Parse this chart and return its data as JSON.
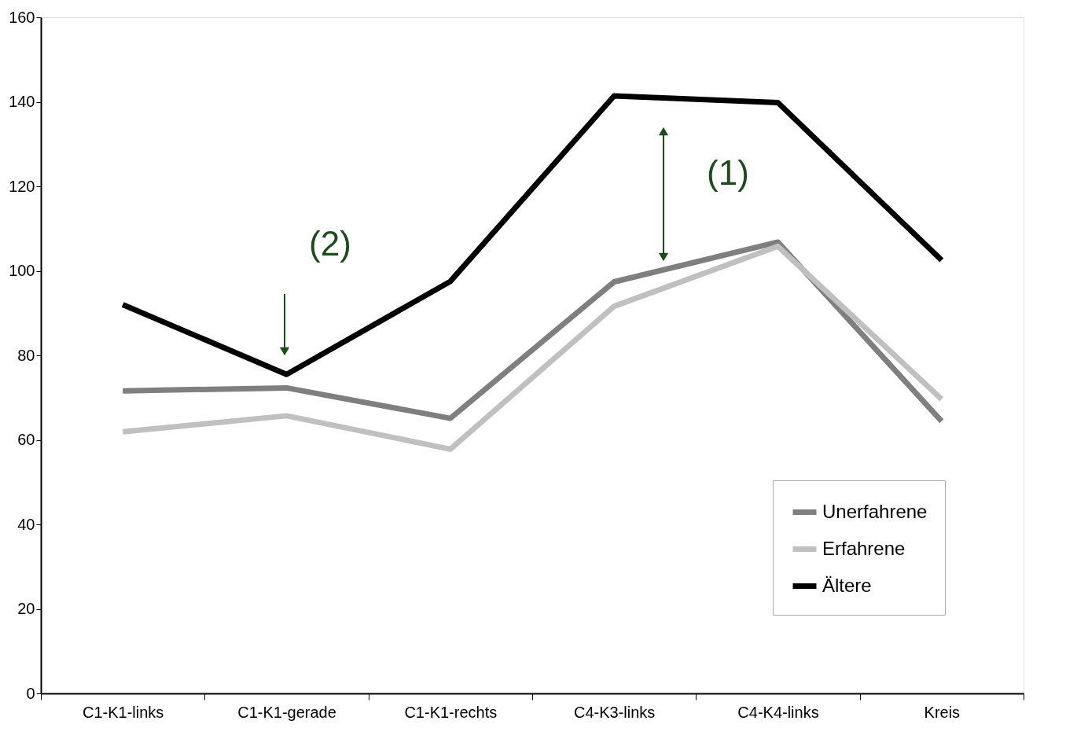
{
  "chart_data": {
    "type": "line",
    "categories": [
      "C1-K1-links",
      "C1-K1-gerade",
      "C1-K1-rechts",
      "C4-K3-links",
      "C4-K4-links",
      "Kreis"
    ],
    "series": [
      {
        "name": "Unerfahrene",
        "color": "#7f7f7f",
        "values": [
          71.6,
          72.3,
          65.1,
          97.4,
          106.8,
          64.4
        ]
      },
      {
        "name": "Erfahrene",
        "color": "#c0c0c0",
        "values": [
          61.9,
          65.7,
          57.8,
          91.6,
          105.8,
          69.6
        ]
      },
      {
        "name": "Ältere",
        "color": "#000000",
        "values": [
          92.0,
          75.5,
          97.5,
          141.4,
          139.8,
          102.5
        ]
      }
    ],
    "ylim": [
      0,
      160
    ],
    "yticks": [
      0,
      20,
      40,
      60,
      80,
      100,
      120,
      140,
      160
    ],
    "grid": false,
    "legend": "bottom right",
    "marker": "none",
    "line_style": "solid",
    "annotations": [
      "(2)",
      "(1)"
    ]
  }
}
